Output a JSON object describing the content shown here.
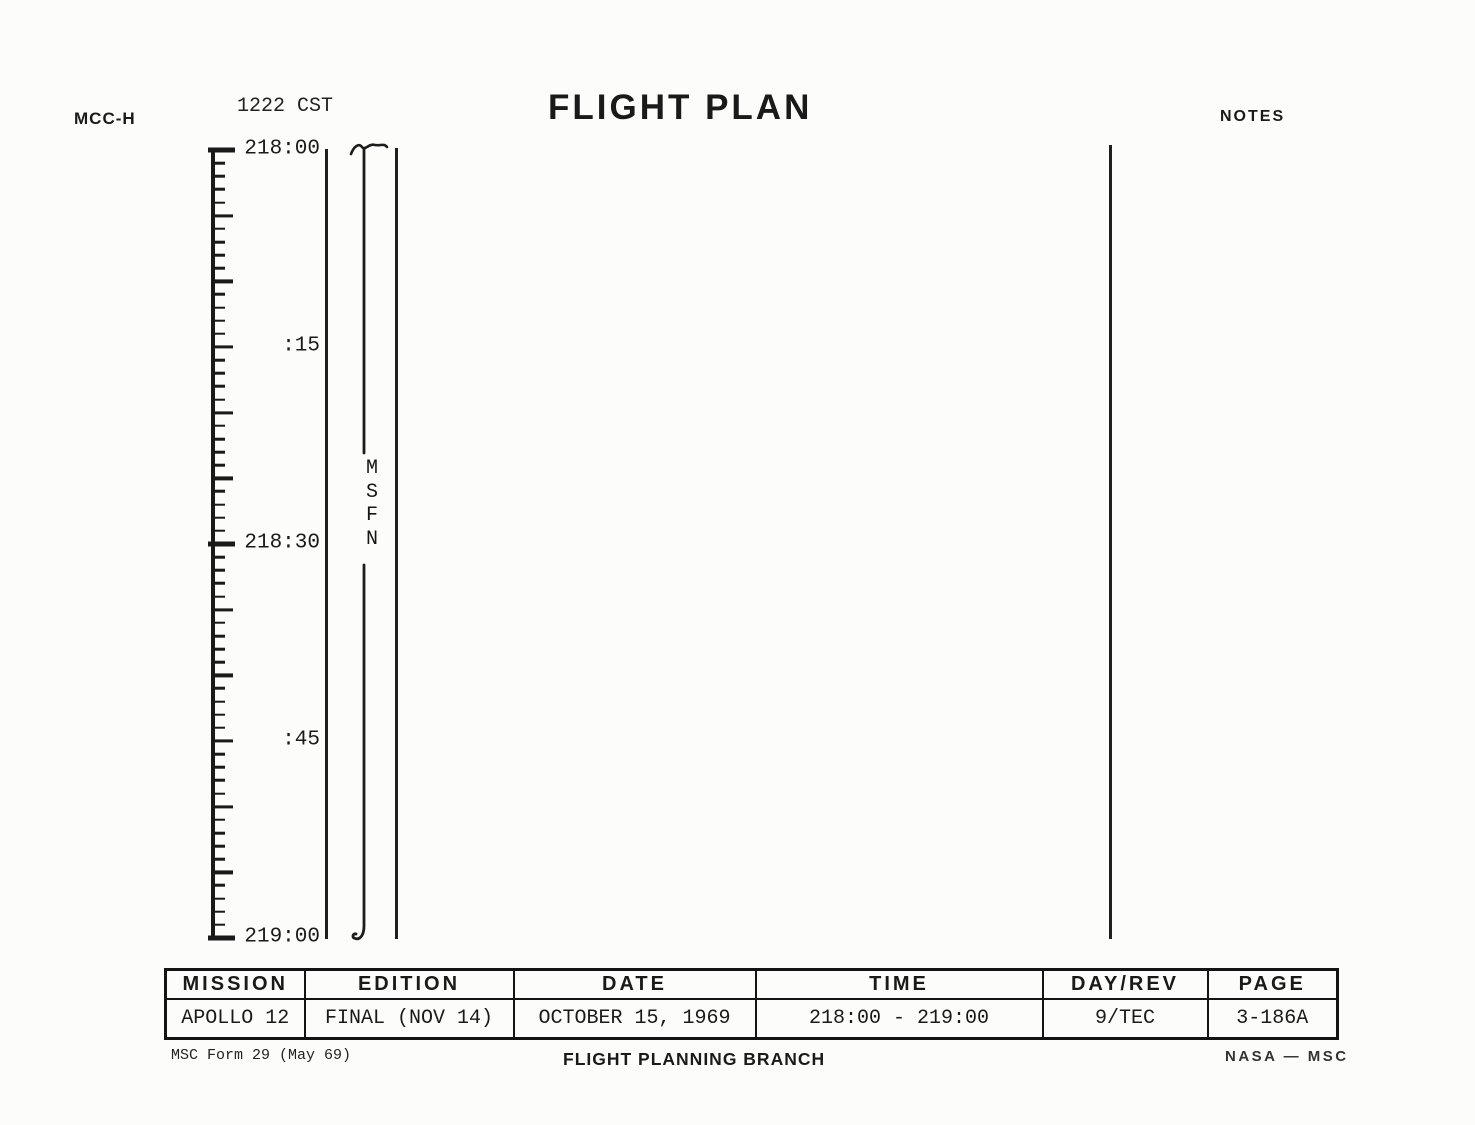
{
  "header": {
    "station": "MCC-H",
    "cst_time": "1222 CST",
    "title": "FLIGHT PLAN",
    "notes_label": "NOTES"
  },
  "timeline": {
    "minutes_total": 60,
    "minor_tick_every_min": 1,
    "medium_tick_every_min": 5,
    "major_tick_every_min": 30,
    "tick_labels": [
      {
        "minute": 0,
        "label": "218:00"
      },
      {
        "minute": 15,
        "label": ":15"
      },
      {
        "minute": 30,
        "label": "218:30"
      },
      {
        "minute": 45,
        "label": ":45"
      },
      {
        "minute": 60,
        "label": "219:00"
      }
    ],
    "msfn_label": "MSFN"
  },
  "footer_table": {
    "columns": [
      {
        "header": "MISSION",
        "value": "APOLLO 12"
      },
      {
        "header": "EDITION",
        "value": "FINAL (NOV 14)"
      },
      {
        "header": "DATE",
        "value": "OCTOBER 15, 1969"
      },
      {
        "header": "TIME",
        "value": "218:00 - 219:00"
      },
      {
        "header": "DAY/REV",
        "value": "9/TEC"
      },
      {
        "header": "PAGE",
        "value": "3-186A"
      }
    ]
  },
  "footer": {
    "form_number": "MSC Form 29 (May 69)",
    "branch": "FLIGHT PLANNING BRANCH",
    "agency": "NASA — MSC"
  }
}
